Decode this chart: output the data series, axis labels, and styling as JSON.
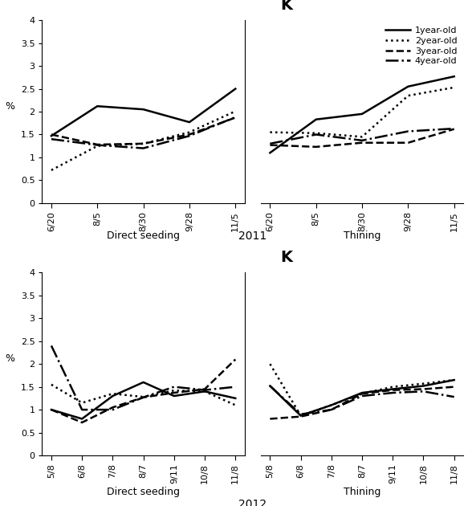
{
  "title_k": "K",
  "ylabel": "%",
  "ylim": [
    0,
    4
  ],
  "yticks": [
    0,
    0.5,
    1,
    1.5,
    2,
    2.5,
    3,
    3.5,
    4
  ],
  "ytick_labels": [
    "0",
    "0.5",
    "1",
    "1.5",
    "2",
    "2.5",
    "3",
    "3.5",
    "4"
  ],
  "year2011": {
    "year_label": "2011",
    "xticks_ds": [
      "6/20",
      "8/5",
      "8/30",
      "9/28",
      "11/5"
    ],
    "xticks_th": [
      "6/20",
      "8/5",
      "8/30",
      "9/28",
      "11/5"
    ],
    "ds_label": "Direct seeding",
    "th_label": "Thining",
    "direct_seeding": {
      "1year": [
        1.47,
        2.12,
        2.05,
        1.77,
        2.5
      ],
      "2year": [
        0.72,
        1.25,
        1.3,
        1.55,
        2.01
      ],
      "3year": [
        1.5,
        1.28,
        1.3,
        1.5,
        1.87
      ],
      "4year": [
        1.4,
        1.27,
        1.2,
        1.47,
        1.88
      ]
    },
    "thinning": {
      "1year": [
        1.1,
        1.83,
        1.95,
        2.55,
        2.77
      ],
      "2year": [
        1.55,
        1.53,
        1.45,
        2.35,
        2.53
      ],
      "3year": [
        1.27,
        1.23,
        1.32,
        1.32,
        1.62
      ],
      "4year": [
        1.3,
        1.5,
        1.37,
        1.57,
        1.63
      ]
    }
  },
  "year2012": {
    "year_label": "2012",
    "xticks_ds": [
      "5/8",
      "6/8",
      "7/8",
      "8/7",
      "9/11",
      "10/8",
      "11/8"
    ],
    "xticks_th": [
      "5/8",
      "6/8",
      "7/8",
      "8/7",
      "9/11",
      "10/8",
      "11/8"
    ],
    "ds_label": "Direct seeding",
    "th_label": "Thining",
    "direct_seeding": {
      "1year": [
        1.0,
        0.8,
        1.3,
        1.6,
        1.3,
        1.4,
        1.25
      ],
      "2year": [
        1.55,
        1.15,
        1.35,
        1.28,
        1.42,
        1.4,
        1.1
      ],
      "3year": [
        1.0,
        0.72,
        1.05,
        1.27,
        1.37,
        1.45,
        2.1
      ],
      "4year": [
        2.4,
        1.0,
        1.0,
        1.27,
        1.5,
        1.43,
        1.5
      ]
    },
    "thinning": {
      "1year": [
        1.52,
        0.87,
        1.1,
        1.37,
        1.45,
        1.52,
        1.65
      ],
      "2year": [
        2.0,
        0.87,
        1.1,
        1.35,
        1.5,
        1.57,
        1.65
      ],
      "3year": [
        0.8,
        0.85,
        1.0,
        1.35,
        1.43,
        1.45,
        1.5
      ],
      "4year": [
        1.52,
        0.9,
        1.0,
        1.3,
        1.37,
        1.4,
        1.28
      ]
    }
  },
  "legend": {
    "labels": [
      "1year-old",
      "2year-old",
      "3year-old",
      "4year-old"
    ],
    "linestyles": [
      "solid",
      "dotted",
      "dashed",
      "dashdot"
    ],
    "linewidths": [
      1.8,
      1.8,
      1.8,
      1.8
    ],
    "colors": [
      "black",
      "black",
      "black",
      "black"
    ]
  }
}
